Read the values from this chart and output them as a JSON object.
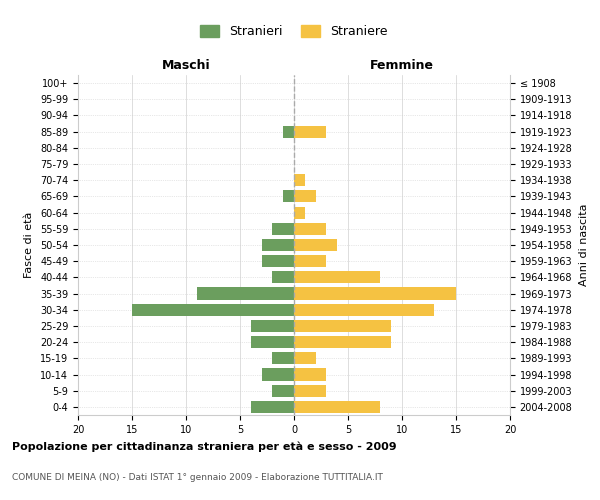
{
  "age_groups": [
    "0-4",
    "5-9",
    "10-14",
    "15-19",
    "20-24",
    "25-29",
    "30-34",
    "35-39",
    "40-44",
    "45-49",
    "50-54",
    "55-59",
    "60-64",
    "65-69",
    "70-74",
    "75-79",
    "80-84",
    "85-89",
    "90-94",
    "95-99",
    "100+"
  ],
  "birth_years": [
    "2004-2008",
    "1999-2003",
    "1994-1998",
    "1989-1993",
    "1984-1988",
    "1979-1983",
    "1974-1978",
    "1969-1973",
    "1964-1968",
    "1959-1963",
    "1954-1958",
    "1949-1953",
    "1944-1948",
    "1939-1943",
    "1934-1938",
    "1929-1933",
    "1924-1928",
    "1919-1923",
    "1914-1918",
    "1909-1913",
    "≤ 1908"
  ],
  "males": [
    4,
    2,
    3,
    2,
    4,
    4,
    15,
    9,
    2,
    3,
    3,
    2,
    0,
    1,
    0,
    0,
    0,
    1,
    0,
    0,
    0
  ],
  "females": [
    8,
    3,
    3,
    2,
    9,
    9,
    13,
    15,
    8,
    3,
    4,
    3,
    1,
    2,
    1,
    0,
    0,
    3,
    0,
    0,
    0
  ],
  "male_color": "#6b9e5e",
  "female_color": "#f5c242",
  "title": "Popolazione per cittadinanza straniera per età e sesso - 2009",
  "subtitle": "COMUNE DI MEINA (NO) - Dati ISTAT 1° gennaio 2009 - Elaborazione TUTTITALIA.IT",
  "xlabel_left": "Maschi",
  "xlabel_right": "Femmine",
  "ylabel_left": "Fasce di età",
  "ylabel_right": "Anni di nascita",
  "legend_male": "Stranieri",
  "legend_female": "Straniere",
  "xlim": 20,
  "background_color": "#ffffff",
  "grid_color": "#d0d0d0"
}
